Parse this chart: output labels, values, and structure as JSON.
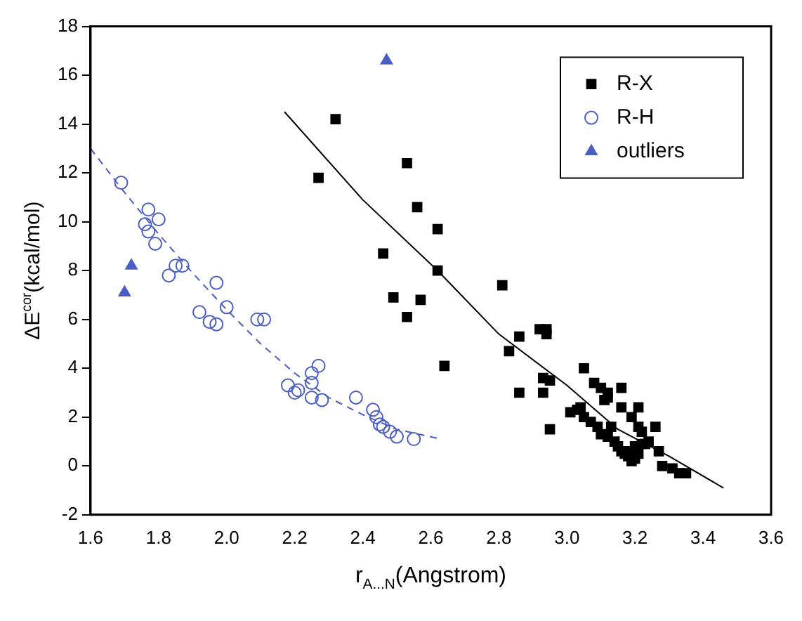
{
  "chart_data": {
    "type": "scatter",
    "xlabel": "r$_{A...N}$(Angstrom)",
    "ylabel": "ΔE$^{cor}$(kcal/mol)",
    "xlim": [
      1.6,
      3.6
    ],
    "xticks": [
      1.6,
      1.8,
      {
        "value": 2,
        "label": "2.0"
      },
      2.2,
      2.4,
      2.6,
      2.8,
      {
        "value": 3,
        "label": "3.0"
      },
      3.2,
      3.4,
      3.6
    ],
    "ylim": [
      -2,
      18
    ],
    "yticks": [
      -2,
      0,
      2,
      4,
      6,
      8,
      10,
      12,
      14,
      16,
      18
    ],
    "grid": false,
    "legend": "top right",
    "series": [
      {
        "name": "R-X",
        "color": "#000000",
        "marker": "square",
        "x": [
          2.27,
          2.32,
          2.46,
          2.49,
          2.53,
          2.53,
          2.56,
          2.57,
          2.62,
          2.62,
          2.64,
          2.81,
          2.83,
          2.86,
          2.86,
          2.92,
          2.94,
          2.94,
          2.93,
          2.95,
          2.93,
          2.95,
          3.05,
          3.08,
          3.1,
          3.12,
          3.12,
          3.11,
          3.16,
          3.16,
          3.21,
          3.19,
          3.21,
          3.22,
          3.26,
          3.01,
          3.03,
          3.04,
          3.05,
          3.07,
          3.09,
          3.1,
          3.12,
          3.13,
          3.14,
          3.15,
          3.16,
          3.17,
          3.18,
          3.19,
          3.2,
          3.21,
          3.22,
          3.23,
          3.24,
          3.27,
          3.28,
          3.31,
          3.33,
          3.35,
          3.19,
          3.2
        ],
        "values": [
          11.8,
          14.2,
          8.7,
          6.9,
          12.4,
          6.1,
          10.6,
          6.8,
          9.7,
          8.0,
          4.1,
          7.4,
          4.7,
          5.3,
          3.0,
          5.6,
          5.6,
          5.4,
          3.6,
          3.5,
          3.0,
          1.5,
          4.0,
          3.4,
          3.2,
          3.0,
          2.8,
          2.7,
          3.2,
          2.4,
          2.4,
          2.0,
          1.6,
          1.4,
          1.6,
          2.2,
          2.3,
          2.4,
          2.0,
          1.8,
          1.6,
          1.3,
          1.2,
          1.6,
          1.0,
          0.8,
          0.6,
          0.5,
          0.4,
          0.6,
          0.8,
          0.5,
          0.9,
          0.9,
          1.0,
          0.6,
          0.0,
          -0.1,
          -0.3,
          -0.3,
          0.2,
          0.3
        ]
      },
      {
        "name": "R-H",
        "color": "#4a5fc1",
        "marker": "circle",
        "x": [
          1.69,
          1.77,
          1.76,
          1.8,
          1.77,
          1.79,
          1.83,
          1.85,
          1.87,
          1.97,
          1.92,
          2.0,
          1.95,
          1.97,
          2.09,
          2.11,
          2.18,
          2.2,
          2.21,
          2.25,
          2.25,
          2.27,
          2.25,
          2.28,
          2.38,
          2.43,
          2.44,
          2.45,
          2.46,
          2.48,
          2.5,
          2.55
        ],
        "values": [
          11.6,
          10.5,
          9.9,
          10.1,
          9.6,
          9.1,
          7.8,
          8.2,
          8.2,
          7.5,
          6.3,
          6.5,
          5.9,
          5.8,
          6.0,
          6.0,
          3.3,
          3.0,
          3.1,
          3.4,
          3.8,
          4.1,
          2.8,
          2.7,
          2.8,
          2.3,
          2.0,
          1.7,
          1.6,
          1.4,
          1.2,
          1.1
        ]
      },
      {
        "name": "outliers",
        "color": "#4a5fc1",
        "marker": "triangle",
        "x": [
          1.7,
          1.72,
          2.47
        ],
        "values": [
          7.1,
          8.2,
          16.6
        ]
      },
      {
        "type": "line",
        "color": "#000000",
        "marker": "none",
        "line_style": "solid",
        "x": [
          2.17,
          2.4,
          2.62,
          2.8,
          3.0,
          3.15,
          3.3,
          3.46
        ],
        "values": [
          14.5,
          10.9,
          8.0,
          5.4,
          3.3,
          1.5,
          0.4,
          -0.9
        ]
      },
      {
        "type": "line",
        "color": "#4a5fc1",
        "marker": "none",
        "line_style": "dashed",
        "x": [
          1.6,
          1.7,
          1.8,
          1.9,
          2.0,
          2.1,
          2.2,
          2.3,
          2.4,
          2.5,
          2.63
        ],
        "values": [
          13.0,
          11.2,
          9.5,
          7.9,
          6.4,
          5.0,
          3.8,
          2.8,
          2.1,
          1.5,
          1.1
        ]
      }
    ]
  }
}
